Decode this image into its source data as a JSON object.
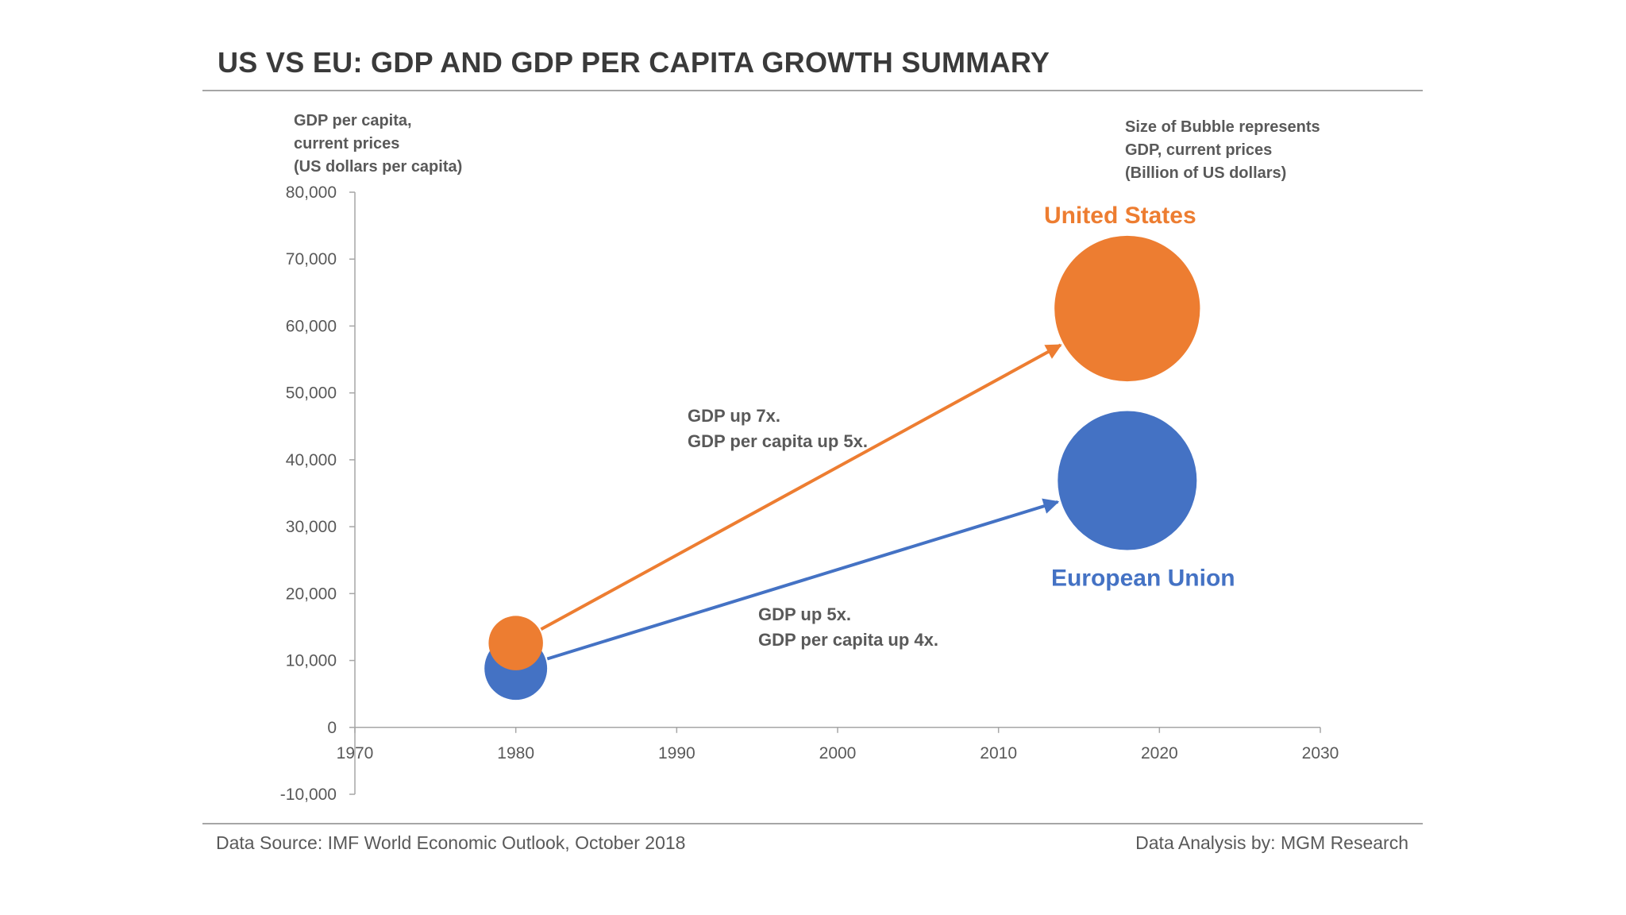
{
  "title": "US VS EU: GDP AND GDP PER CAPITA GROWTH SUMMARY",
  "footer": {
    "source": "Data Source: IMF World Economic Outlook, October 2018",
    "analysis": "Data Analysis by: MGM Research"
  },
  "colors": {
    "us": "#ED7D31",
    "eu": "#4472C4",
    "axis": "#A6A6A6",
    "text": "#595959",
    "title": "#3A3A3A"
  },
  "chart_data": {
    "type": "bubble",
    "ylabel_lines": [
      "GDP per capita,",
      "current prices",
      "(US dollars per capita)"
    ],
    "size_note_lines": [
      "Size of Bubble represents",
      "GDP, current prices",
      "(Billion of US dollars)"
    ],
    "xlim": [
      1970,
      2030
    ],
    "ylim": [
      -10000,
      80000
    ],
    "x_ticks": [
      "1970",
      "1980",
      "1990",
      "2000",
      "2010",
      "2020",
      "2030"
    ],
    "y_ticks": [
      "-10,000",
      "0",
      "10,000",
      "20,000",
      "30,000",
      "40,000",
      "50,000",
      "60,000",
      "70,000",
      "80,000"
    ],
    "x_tick_values": [
      1970,
      1980,
      1990,
      2000,
      2010,
      2020,
      2030
    ],
    "y_tick_values": [
      -10000,
      0,
      10000,
      20000,
      30000,
      40000,
      50000,
      60000,
      70000,
      80000
    ],
    "series": [
      {
        "name": "United States",
        "color": "#ED7D31",
        "points": [
          {
            "x": 1980,
            "y": 12600,
            "size": 2860
          },
          {
            "x": 2018,
            "y": 62600,
            "size": 20500
          }
        ],
        "annotation": [
          "GDP up 7x.",
          "GDP per capita up 5x."
        ]
      },
      {
        "name": "European Union",
        "color": "#4472C4",
        "points": [
          {
            "x": 1980,
            "y": 8800,
            "size": 3800
          },
          {
            "x": 2018,
            "y": 36900,
            "size": 18700
          }
        ],
        "annotation": [
          "GDP up 5x.",
          "GDP per capita up 4x."
        ]
      }
    ]
  }
}
